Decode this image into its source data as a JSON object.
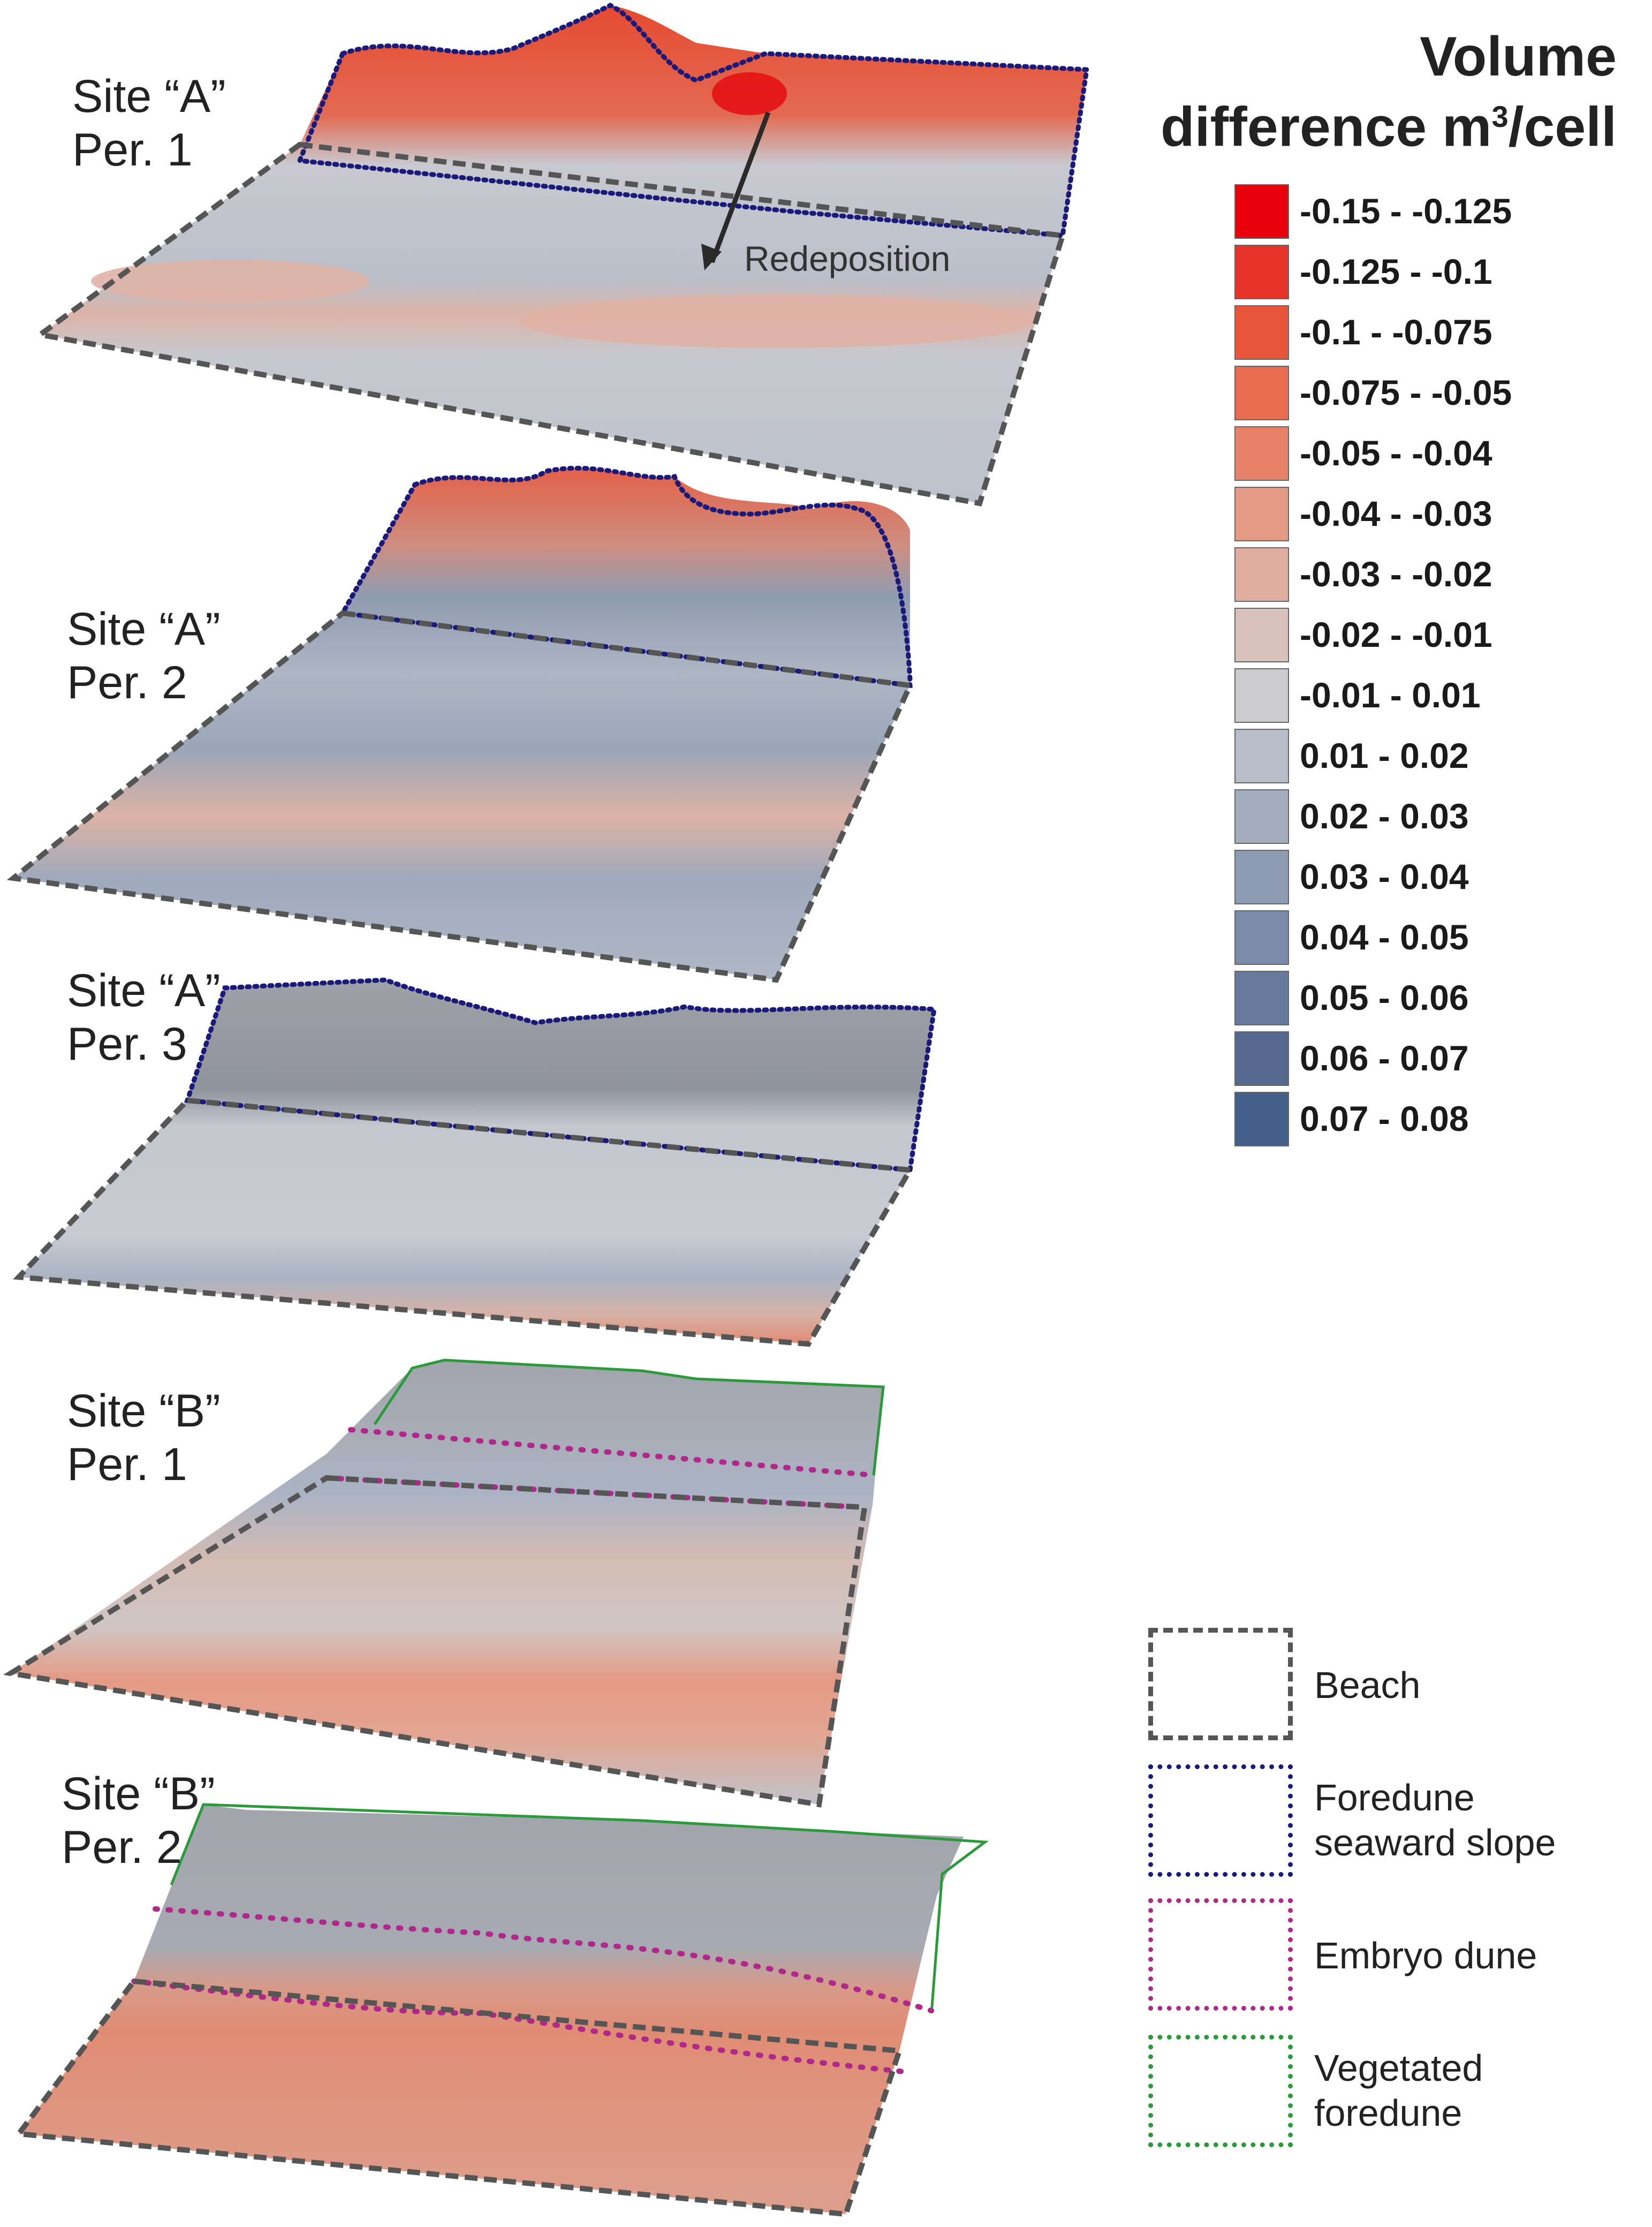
{
  "panels": [
    {
      "label": "Site “A”\nPer. 1"
    },
    {
      "label": "Site “A”\nPer. 2"
    },
    {
      "label": "Site “A”\nPer. 3"
    },
    {
      "label": "Site “B”\nPer. 1"
    },
    {
      "label": "Site “B”\nPer. 2"
    }
  ],
  "annotation": {
    "text": "Redeposition"
  },
  "legend": {
    "title_line1": "Volume",
    "title_line2a": "difference m",
    "title_sup": "3",
    "title_line2b": "/cell",
    "classes": [
      {
        "label": "-0.15 - -0.125",
        "color": "#e8000b"
      },
      {
        "label": "-0.125 - -0.1",
        "color": "#e8332a"
      },
      {
        "label": "-0.1 - -0.075",
        "color": "#e85539"
      },
      {
        "label": "-0.075 - -0.05",
        "color": "#e86c4f"
      },
      {
        "label": "-0.05 - -0.04",
        "color": "#e6836a"
      },
      {
        "label": "-0.04 - -0.03",
        "color": "#e59a85"
      },
      {
        "label": "-0.03 - -0.02",
        "color": "#e0aea0"
      },
      {
        "label": "-0.02 - -0.01",
        "color": "#d8c2bb"
      },
      {
        "label": "-0.01 - 0.01",
        "color": "#cccccf"
      },
      {
        "label": "0.01 - 0.02",
        "color": "#b8bec9"
      },
      {
        "label": "0.02 - 0.03",
        "color": "#a3adbe"
      },
      {
        "label": "0.03 - 0.04",
        "color": "#8e9cb3"
      },
      {
        "label": "0.04 - 0.05",
        "color": "#7a8ba8"
      },
      {
        "label": "0.05 - 0.06",
        "color": "#67799c"
      },
      {
        "label": "0.06 - 0.07",
        "color": "#55698f"
      },
      {
        "label": "0.07 - 0.08",
        "color": "#43608a"
      }
    ],
    "zones": [
      {
        "label": "Beach",
        "color": "#555555",
        "style": "dashed"
      },
      {
        "label": "Foredune seaward slope",
        "color": "#1a1a7a",
        "style": "dotted"
      },
      {
        "label": "Embryo dune",
        "color": "#b0288a",
        "style": "dotted"
      },
      {
        "label": "Vegetated foredune",
        "color": "#2a9a3a",
        "style": "dotted"
      }
    ]
  }
}
